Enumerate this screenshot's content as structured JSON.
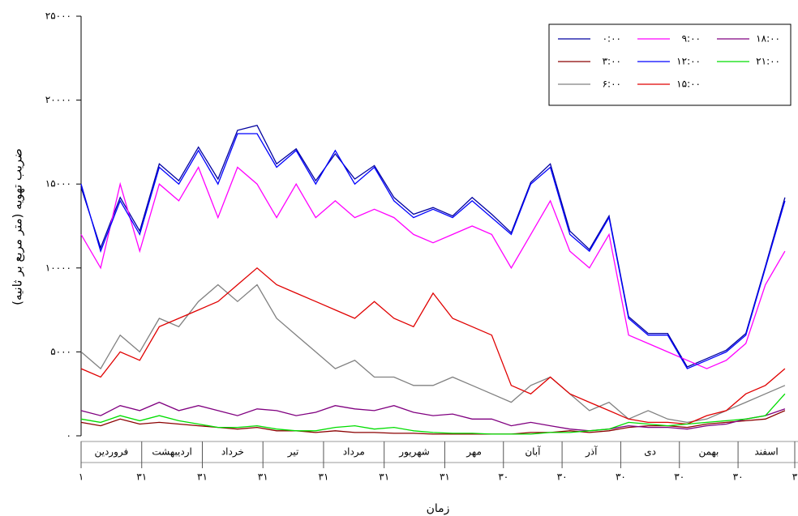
{
  "chart_data": {
    "type": "line",
    "y_label": "ضریب تهویه (متر مربع بر ثانیه)",
    "x_label": "زمان",
    "month_labels": [
      "فروردین",
      "اردیبهشت",
      "خرداد",
      "تیر",
      "مرداد",
      "شهریور",
      "مهر",
      "آبان",
      "آذر",
      "دی",
      "بهمن",
      "اسفند"
    ],
    "x": [
      1,
      11,
      21,
      31,
      41,
      51,
      61,
      71,
      81,
      91,
      101,
      111,
      121,
      131,
      141,
      151,
      161,
      171,
      181,
      191,
      201,
      211,
      221,
      231,
      241,
      251,
      261,
      271,
      281,
      291,
      301,
      311,
      321,
      331,
      341,
      351,
      361
    ],
    "xlim": [
      1,
      366
    ],
    "xticks": [
      {
        "value": 1,
        "label": "۱"
      },
      {
        "value": 32,
        "label": "۳۱"
      },
      {
        "value": 63,
        "label": "۳۱"
      },
      {
        "value": 94,
        "label": "۳۱"
      },
      {
        "value": 125,
        "label": "۳۱"
      },
      {
        "value": 156,
        "label": "۳۱"
      },
      {
        "value": 187,
        "label": "۳۱"
      },
      {
        "value": 217,
        "label": "۳۰"
      },
      {
        "value": 247,
        "label": "۳۰"
      },
      {
        "value": 277,
        "label": "۳۰"
      },
      {
        "value": 307,
        "label": "۳۰"
      },
      {
        "value": 337,
        "label": "۳۰"
      },
      {
        "value": 366,
        "label": "۳"
      }
    ],
    "ylim": [
      0,
      25000
    ],
    "yticks": [
      {
        "value": 0,
        "label": "۰"
      },
      {
        "value": 5000,
        "label": "۵۰۰۰"
      },
      {
        "value": 10000,
        "label": "۱۰۰۰۰"
      },
      {
        "value": 15000,
        "label": "۱۵۰۰۰"
      },
      {
        "value": 20000,
        "label": "۲۰۰۰۰"
      },
      {
        "value": 25000,
        "label": "۲۵۰۰۰"
      }
    ],
    "series": [
      {
        "name": "۰:۰۰",
        "color": "#0000a0",
        "values": [
          14800,
          11200,
          14200,
          12200,
          16200,
          15200,
          17200,
          15300,
          18200,
          18500,
          16200,
          17100,
          15200,
          16800,
          15300,
          16100,
          14200,
          13200,
          13600,
          13100,
          14200,
          13200,
          12100,
          15100,
          16200,
          12200,
          11100,
          13100,
          7100,
          6100,
          6100,
          4100,
          4600,
          5100,
          6100,
          10100,
          14200
        ]
      },
      {
        "name": "۳:۰۰",
        "color": "#8b0000",
        "values": [
          800,
          600,
          1000,
          700,
          800,
          700,
          600,
          500,
          400,
          500,
          300,
          300,
          200,
          300,
          200,
          200,
          150,
          150,
          100,
          100,
          100,
          100,
          100,
          200,
          200,
          300,
          200,
          300,
          500,
          600,
          600,
          500,
          700,
          800,
          900,
          1000,
          1500
        ]
      },
      {
        "name": "۶:۰۰",
        "color": "#808080",
        "values": [
          5000,
          4000,
          6000,
          5000,
          7000,
          6500,
          8000,
          9000,
          8000,
          9000,
          7000,
          6000,
          5000,
          4000,
          4500,
          3500,
          3500,
          3000,
          3000,
          3500,
          3000,
          2500,
          2000,
          3000,
          3500,
          2500,
          1500,
          2000,
          1000,
          1500,
          1000,
          800,
          1000,
          1500,
          2000,
          2500,
          3000
        ]
      },
      {
        "name": "۹:۰۰",
        "color": "#ff00ff",
        "values": [
          12000,
          10000,
          15000,
          11000,
          15000,
          14000,
          16000,
          13000,
          16000,
          15000,
          13000,
          15000,
          13000,
          14000,
          13000,
          13500,
          13000,
          12000,
          11500,
          12000,
          12500,
          12000,
          10000,
          12000,
          14000,
          11000,
          10000,
          12000,
          6000,
          5500,
          5000,
          4500,
          4000,
          4500,
          5500,
          9000,
          11000
        ]
      },
      {
        "name": "۱۲:۰۰",
        "color": "#0000ff",
        "values": [
          15000,
          11000,
          14000,
          12000,
          16000,
          15000,
          17000,
          15000,
          18000,
          18000,
          16000,
          17000,
          15000,
          17000,
          15000,
          16000,
          14000,
          13000,
          13500,
          13000,
          14000,
          13000,
          12000,
          15000,
          16000,
          12000,
          11000,
          13000,
          7000,
          6000,
          6000,
          4000,
          4500,
          5000,
          6000,
          10000,
          14000
        ]
      },
      {
        "name": "۱۵:۰۰",
        "color": "#e00000",
        "values": [
          4000,
          3500,
          5000,
          4500,
          6500,
          7000,
          7500,
          8000,
          9000,
          10000,
          9000,
          8500,
          8000,
          7500,
          7000,
          8000,
          7000,
          6500,
          8500,
          7000,
          6500,
          6000,
          3000,
          2500,
          3500,
          2500,
          2000,
          1500,
          1000,
          800,
          800,
          700,
          1200,
          1500,
          2500,
          3000,
          4000
        ]
      },
      {
        "name": "۱۸:۰۰",
        "color": "#800080",
        "values": [
          1500,
          1200,
          1800,
          1500,
          2000,
          1500,
          1800,
          1500,
          1200,
          1600,
          1500,
          1200,
          1400,
          1800,
          1600,
          1500,
          1800,
          1400,
          1200,
          1300,
          1000,
          1000,
          600,
          800,
          600,
          400,
          300,
          400,
          600,
          500,
          500,
          400,
          600,
          700,
          1000,
          1200,
          1600
        ]
      },
      {
        "name": "۲۱:۰۰",
        "color": "#00dd00",
        "values": [
          1000,
          800,
          1200,
          900,
          1200,
          900,
          700,
          500,
          500,
          600,
          400,
          300,
          300,
          500,
          600,
          400,
          500,
          300,
          200,
          150,
          150,
          100,
          100,
          100,
          200,
          200,
          300,
          400,
          800,
          700,
          600,
          700,
          800,
          900,
          1000,
          1200,
          2500
        ]
      }
    ]
  }
}
